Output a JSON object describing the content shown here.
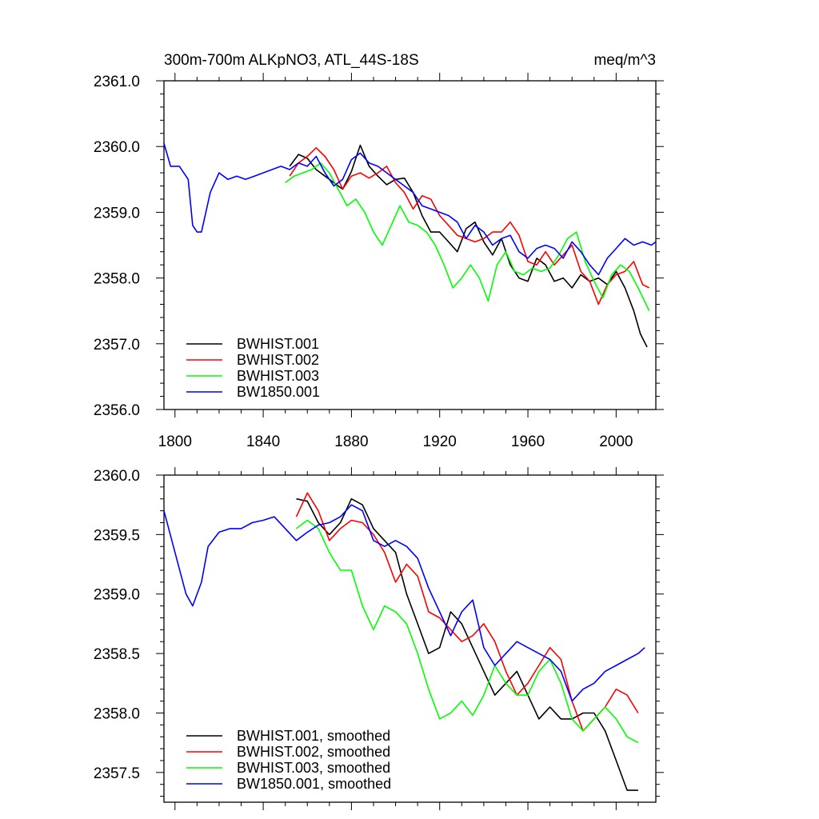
{
  "chart_data": [
    {
      "type": "line",
      "title": "300m-700m ALKpNO3, ATL_44S-18S",
      "units": "meq/m^3",
      "xlim": [
        1795,
        2018
      ],
      "ylim": [
        2356.0,
        2361.0
      ],
      "xticks": [
        1800,
        1840,
        1880,
        1920,
        1960,
        2000
      ],
      "xtick_labels": [
        "1800",
        "1840",
        "1880",
        "1920",
        "1960",
        "2000"
      ],
      "yticks": [
        2356.0,
        2357.0,
        2358.0,
        2359.0,
        2360.0,
        2361.0
      ],
      "ytick_labels": [
        "2356.0",
        "2357.0",
        "2358.0",
        "2359.0",
        "2360.0",
        "2361.0"
      ],
      "legend_position": "bottom-left",
      "series": [
        {
          "name": "BWHIST.001",
          "color": "#000000",
          "x": [
            1852,
            1856,
            1860,
            1864,
            1868,
            1872,
            1876,
            1880,
            1884,
            1888,
            1892,
            1896,
            1900,
            1904,
            1908,
            1912,
            1916,
            1920,
            1924,
            1928,
            1932,
            1936,
            1940,
            1944,
            1948,
            1952,
            1956,
            1960,
            1964,
            1968,
            1972,
            1976,
            1980,
            1984,
            1988,
            1992,
            1996,
            2000,
            2004,
            2008,
            2011,
            2014
          ],
          "y": [
            2359.7,
            2359.88,
            2359.82,
            2359.65,
            2359.55,
            2359.45,
            2359.35,
            2359.62,
            2360.02,
            2359.7,
            2359.55,
            2359.42,
            2359.5,
            2359.52,
            2359.3,
            2358.95,
            2358.7,
            2358.7,
            2358.55,
            2358.4,
            2358.75,
            2358.85,
            2358.55,
            2358.35,
            2358.6,
            2358.2,
            2358.0,
            2357.95,
            2358.3,
            2358.2,
            2357.95,
            2358.0,
            2357.85,
            2358.05,
            2357.95,
            2358.0,
            2357.9,
            2358.1,
            2357.85,
            2357.5,
            2357.15,
            2356.95
          ]
        },
        {
          "name": "BWHIST.002",
          "color": "#ff0000",
          "x": [
            1852,
            1856,
            1860,
            1864,
            1868,
            1872,
            1876,
            1880,
            1884,
            1888,
            1892,
            1896,
            1900,
            1904,
            1908,
            1912,
            1916,
            1920,
            1924,
            1928,
            1932,
            1936,
            1940,
            1944,
            1948,
            1952,
            1956,
            1960,
            1964,
            1968,
            1972,
            1976,
            1980,
            1984,
            1988,
            1992,
            1996,
            2000,
            2004,
            2008,
            2012,
            2015
          ],
          "y": [
            2359.55,
            2359.75,
            2359.85,
            2359.98,
            2359.85,
            2359.65,
            2359.35,
            2359.55,
            2359.6,
            2359.52,
            2359.6,
            2359.7,
            2359.45,
            2359.3,
            2359.05,
            2359.25,
            2359.2,
            2358.95,
            2358.8,
            2358.65,
            2358.6,
            2358.55,
            2358.6,
            2358.7,
            2358.7,
            2358.85,
            2358.65,
            2358.25,
            2358.2,
            2358.4,
            2358.2,
            2358.35,
            2358.5,
            2358.1,
            2357.95,
            2357.6,
            2357.9,
            2358.05,
            2358.1,
            2358.25,
            2357.9,
            2357.85
          ]
        },
        {
          "name": "BWHIST.003",
          "color": "#00ff00",
          "x": [
            1850,
            1854,
            1858,
            1862,
            1866,
            1870,
            1874,
            1878,
            1882,
            1886,
            1890,
            1894,
            1898,
            1902,
            1906,
            1910,
            1914,
            1918,
            1922,
            1926,
            1930,
            1934,
            1938,
            1942,
            1946,
            1950,
            1954,
            1958,
            1962,
            1966,
            1970,
            1974,
            1978,
            1982,
            1986,
            1990,
            1994,
            1998,
            2002,
            2006,
            2010,
            2015
          ],
          "y": [
            2359.45,
            2359.55,
            2359.6,
            2359.65,
            2359.75,
            2359.6,
            2359.35,
            2359.1,
            2359.2,
            2359.0,
            2358.7,
            2358.5,
            2358.8,
            2359.1,
            2358.85,
            2358.8,
            2358.7,
            2358.5,
            2358.2,
            2357.85,
            2358.0,
            2358.2,
            2358.0,
            2357.65,
            2358.2,
            2358.4,
            2358.1,
            2358.05,
            2358.15,
            2358.1,
            2358.15,
            2358.35,
            2358.6,
            2358.7,
            2358.25,
            2357.95,
            2357.7,
            2358.05,
            2358.2,
            2358.1,
            2357.85,
            2357.5
          ]
        },
        {
          "name": "BW1850.001",
          "color": "#0000ff",
          "x": [
            1795,
            1798,
            1802,
            1806,
            1808,
            1810,
            1812,
            1816,
            1820,
            1824,
            1828,
            1832,
            1836,
            1840,
            1844,
            1848,
            1852,
            1856,
            1860,
            1864,
            1868,
            1872,
            1876,
            1880,
            1884,
            1888,
            1892,
            1896,
            1900,
            1904,
            1908,
            1912,
            1916,
            1920,
            1924,
            1928,
            1932,
            1936,
            1940,
            1944,
            1948,
            1952,
            1956,
            1960,
            1964,
            1968,
            1972,
            1976,
            1980,
            1984,
            1988,
            1992,
            1996,
            2000,
            2004,
            2008,
            2012,
            2016,
            2018
          ],
          "y": [
            2360.05,
            2359.7,
            2359.7,
            2359.5,
            2358.8,
            2358.7,
            2358.7,
            2359.3,
            2359.6,
            2359.5,
            2359.55,
            2359.5,
            2359.55,
            2359.6,
            2359.65,
            2359.7,
            2359.65,
            2359.75,
            2359.7,
            2359.85,
            2359.6,
            2359.4,
            2359.5,
            2359.8,
            2359.9,
            2359.75,
            2359.7,
            2359.6,
            2359.5,
            2359.4,
            2359.3,
            2359.1,
            2359.05,
            2359.0,
            2358.95,
            2358.85,
            2358.6,
            2358.8,
            2358.7,
            2358.5,
            2358.6,
            2358.65,
            2358.4,
            2358.3,
            2358.45,
            2358.5,
            2358.45,
            2358.3,
            2358.55,
            2358.4,
            2358.2,
            2358.05,
            2358.3,
            2358.45,
            2358.6,
            2358.5,
            2358.55,
            2358.5,
            2358.55
          ]
        }
      ]
    },
    {
      "type": "line",
      "title": "",
      "xlim": [
        1795,
        2018
      ],
      "ylim": [
        2357.25,
        2360.0
      ],
      "xticks": [
        1800,
        1840,
        1880,
        1920,
        1960,
        2000
      ],
      "xtick_labels": [],
      "yticks": [
        2357.5,
        2358.0,
        2358.5,
        2359.0,
        2359.5,
        2360.0
      ],
      "ytick_labels": [
        "2357.5",
        "2358.0",
        "2358.5",
        "2359.0",
        "2359.5",
        "2360.0"
      ],
      "legend_position": "bottom-left",
      "series": [
        {
          "name": "BWHIST.001, smoothed",
          "color": "#000000",
          "x": [
            1855,
            1860,
            1865,
            1870,
            1875,
            1880,
            1885,
            1890,
            1895,
            1900,
            1905,
            1910,
            1915,
            1920,
            1925,
            1930,
            1935,
            1940,
            1945,
            1950,
            1955,
            1960,
            1965,
            1970,
            1975,
            1980,
            1985,
            1990,
            1995,
            2000,
            2005,
            2010
          ],
          "y": [
            2359.8,
            2359.78,
            2359.6,
            2359.5,
            2359.6,
            2359.8,
            2359.75,
            2359.55,
            2359.45,
            2359.35,
            2359.0,
            2358.75,
            2358.5,
            2358.55,
            2358.85,
            2358.75,
            2358.55,
            2358.35,
            2358.15,
            2358.25,
            2358.35,
            2358.15,
            2357.95,
            2358.05,
            2357.95,
            2357.95,
            2358.0,
            2358.0,
            2357.85,
            2357.6,
            2357.35,
            2357.35
          ]
        },
        {
          "name": "BWHIST.002, smoothed",
          "color": "#ff0000",
          "x": [
            1855,
            1860,
            1865,
            1870,
            1875,
            1880,
            1885,
            1890,
            1895,
            1900,
            1905,
            1910,
            1915,
            1920,
            1925,
            1930,
            1935,
            1940,
            1945,
            1950,
            1955,
            1960,
            1965,
            1970,
            1975,
            1980,
            1985,
            1990,
            1995,
            2000,
            2005,
            2010
          ],
          "y": [
            2359.65,
            2359.85,
            2359.7,
            2359.45,
            2359.55,
            2359.62,
            2359.6,
            2359.5,
            2359.35,
            2359.1,
            2359.25,
            2359.15,
            2358.85,
            2358.8,
            2358.7,
            2358.6,
            2358.65,
            2358.75,
            2358.6,
            2358.35,
            2358.15,
            2358.25,
            2358.4,
            2358.55,
            2358.45,
            2358.1,
            2357.85,
            2357.95,
            2358.05,
            2358.2,
            2358.15,
            2358.0
          ]
        },
        {
          "name": "BWHIST.003, smoothed",
          "color": "#00ff00",
          "x": [
            1855,
            1860,
            1865,
            1870,
            1875,
            1880,
            1885,
            1890,
            1895,
            1900,
            1905,
            1910,
            1915,
            1920,
            1925,
            1930,
            1935,
            1940,
            1945,
            1950,
            1955,
            1960,
            1965,
            1970,
            1975,
            1980,
            1985,
            1990,
            1995,
            2000,
            2005,
            2010
          ],
          "y": [
            2359.55,
            2359.62,
            2359.55,
            2359.35,
            2359.2,
            2359.2,
            2358.9,
            2358.7,
            2358.9,
            2358.85,
            2358.75,
            2358.5,
            2358.2,
            2357.95,
            2358.0,
            2358.1,
            2357.98,
            2358.15,
            2358.4,
            2358.25,
            2358.15,
            2358.15,
            2358.35,
            2358.45,
            2358.25,
            2357.95,
            2357.85,
            2357.95,
            2358.05,
            2357.95,
            2357.8,
            2357.75
          ]
        },
        {
          "name": "BW1850.001, smoothed",
          "color": "#0000ff",
          "x": [
            1795,
            1800,
            1805,
            1808,
            1812,
            1815,
            1820,
            1825,
            1830,
            1835,
            1840,
            1845,
            1850,
            1855,
            1860,
            1865,
            1870,
            1875,
            1880,
            1885,
            1890,
            1895,
            1900,
            1905,
            1910,
            1915,
            1920,
            1925,
            1930,
            1935,
            1940,
            1945,
            1950,
            1955,
            1960,
            1965,
            1970,
            1975,
            1980,
            1985,
            1990,
            1995,
            2000,
            2005,
            2010,
            2013
          ],
          "y": [
            2359.7,
            2359.35,
            2359.0,
            2358.9,
            2359.1,
            2359.4,
            2359.52,
            2359.55,
            2359.55,
            2359.6,
            2359.62,
            2359.65,
            2359.55,
            2359.45,
            2359.52,
            2359.58,
            2359.6,
            2359.65,
            2359.75,
            2359.7,
            2359.45,
            2359.4,
            2359.45,
            2359.4,
            2359.3,
            2359.05,
            2358.85,
            2358.65,
            2358.85,
            2358.95,
            2358.55,
            2358.4,
            2358.5,
            2358.6,
            2358.55,
            2358.5,
            2358.45,
            2358.35,
            2358.1,
            2358.2,
            2358.25,
            2358.35,
            2358.4,
            2358.45,
            2358.5,
            2358.55
          ]
        }
      ]
    }
  ]
}
